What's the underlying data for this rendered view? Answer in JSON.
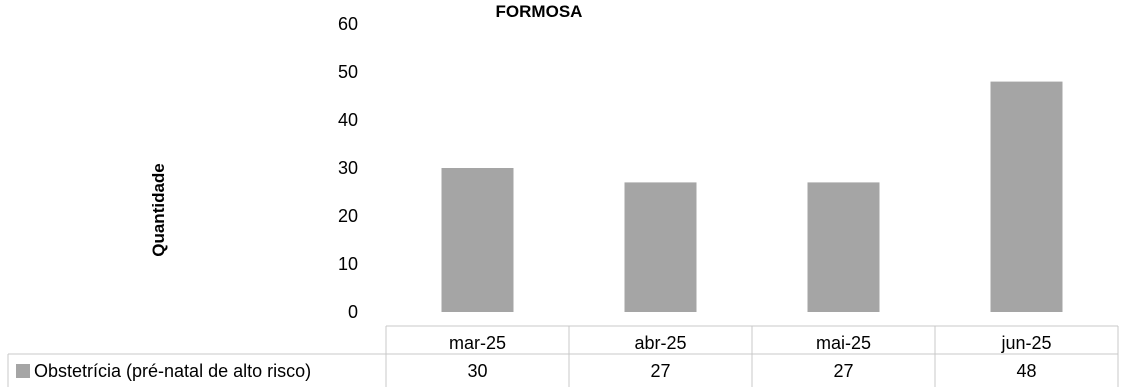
{
  "chart_data": {
    "type": "bar",
    "title": "FORMOSA",
    "ylabel": "Quantidade",
    "xlabel": "",
    "categories": [
      "mar-25",
      "abr-25",
      "mai-25",
      "jun-25"
    ],
    "series": [
      {
        "name": "Obstetrícia (pré-natal de alto risco)",
        "values": [
          30,
          27,
          27,
          48
        ]
      }
    ],
    "ylim": [
      0,
      60
    ],
    "yticks": [
      0,
      10,
      20,
      30,
      40,
      50,
      60
    ],
    "grid": false,
    "legend": "data-table",
    "bar_color": "#a5a5a5"
  }
}
